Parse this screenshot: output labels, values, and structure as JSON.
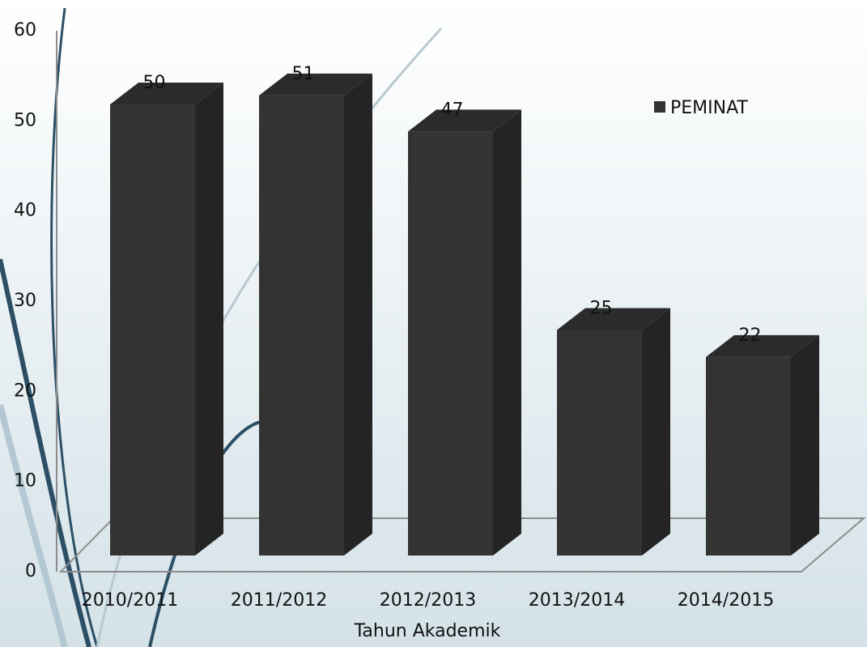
{
  "chart_data": {
    "type": "bar",
    "x_label": "Tahun Akademik",
    "categories": [
      "2010/2011",
      "2011/2012",
      "2012/2013",
      "2013/2014",
      "2014/2015"
    ],
    "series": [
      {
        "name": "PEMINAT",
        "color": "#333333",
        "values": [
          50,
          51,
          47,
          25,
          22
        ]
      }
    ],
    "ylim": [
      0,
      60
    ],
    "yticks": [
      0,
      10,
      20,
      30,
      40,
      50,
      60
    ],
    "grid": false,
    "legend": "upper right"
  }
}
